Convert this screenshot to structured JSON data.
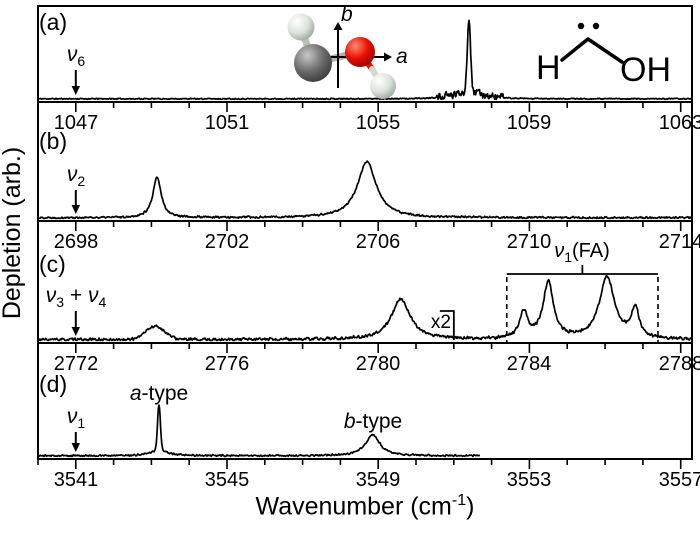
{
  "figure": {
    "ylabel": "Depletion (arb.)",
    "xlabel_pre": "Wavenumber (cm",
    "xlabel_sup": "-1",
    "xlabel_post": ")",
    "ink": "#000000",
    "background": "#ffffff"
  },
  "insets": {
    "molecule": {
      "axis_a_label": "a",
      "axis_b_label": "b",
      "atom_colors": {
        "carbon": "#555555",
        "oxygen": "#d81600",
        "hydrogen": "#dfe4df"
      }
    },
    "structure": {
      "left_label": "H",
      "right_label": "OH",
      "lone_pair_dots": 2
    }
  },
  "chart_data": [
    {
      "panel": "a",
      "panel_label": "(a)",
      "type": "line",
      "xlim": [
        1046.0,
        1063.3
      ],
      "x_major_ticks": [
        1047,
        1051,
        1055,
        1059,
        1063
      ],
      "x_minor_step": 1,
      "band": {
        "segments": [
          {
            "t": "ν",
            "sub": "6"
          }
        ],
        "arrow_x": 1047
      },
      "peaks": [
        {
          "center": 1057.4,
          "height": 0.76,
          "hwhm": 0.05,
          "shape": "gauss"
        },
        {
          "center": 1057.4,
          "height": 0.05,
          "hwhm": 0.3,
          "shape": "lorentz"
        },
        {
          "center": 1057.4,
          "height": 0.035,
          "hwhm": 0.6,
          "shape": "gauss"
        }
      ],
      "noise_amp": 0.007,
      "noise_zones": [
        {
          "from": 1056.55,
          "to": 1058.3,
          "amp": 0.05
        }
      ],
      "seed": 11
    },
    {
      "panel": "b",
      "panel_label": "(b)",
      "type": "line",
      "xlim": [
        2697.0,
        2714.3
      ],
      "x_major_ticks": [
        2698,
        2702,
        2706,
        2710,
        2714
      ],
      "x_minor_step": 1,
      "band": {
        "segments": [
          {
            "t": "ν",
            "sub": "2"
          }
        ],
        "arrow_x": 2698
      },
      "peaks": [
        {
          "center": 2700.15,
          "height": 0.34,
          "hwhm": 0.13,
          "shape": "lorentz"
        },
        {
          "center": 2705.7,
          "height": 0.47,
          "hwhm": 0.3,
          "shape": "lorentz"
        }
      ],
      "noise_amp": 0.01,
      "seed": 22
    },
    {
      "panel": "c",
      "panel_label": "(c)",
      "type": "line",
      "xlim": [
        2771.0,
        2788.3
      ],
      "x_major_ticks": [
        2772,
        2776,
        2780,
        2784,
        2788
      ],
      "x_minor_step": 1,
      "band": {
        "segments": [
          {
            "t": "ν",
            "sub": "3"
          },
          {
            "t": " + "
          },
          {
            "t": "ν",
            "sub": "4"
          }
        ],
        "arrow_x": 2772
      },
      "peaks": [
        {
          "center": 2774.1,
          "height": 0.11,
          "hwhm": 0.3,
          "shape": "gauss"
        },
        {
          "center": 2780.6,
          "height": 0.33,
          "hwhm": 0.3,
          "shape": "lorentz"
        },
        {
          "center": 2783.85,
          "height": 0.22,
          "hwhm": 0.13,
          "shape": "lorentz"
        },
        {
          "center": 2784.5,
          "height": 0.47,
          "hwhm": 0.16,
          "shape": "lorentz"
        },
        {
          "center": 2786.05,
          "height": 0.51,
          "hwhm": 0.24,
          "shape": "lorentz"
        },
        {
          "center": 2786.8,
          "height": 0.24,
          "hwhm": 0.12,
          "shape": "lorentz"
        }
      ],
      "noise_amp": 0.015,
      "scale_marker": {
        "label": "x2",
        "corner_x": 2782.0
      },
      "fa_bracket": {
        "segments": [
          {
            "t": "ν",
            "sub": "1"
          },
          {
            "t": "(FA)"
          }
        ],
        "from": 2783.4,
        "to": 2787.4
      },
      "seed": 33
    },
    {
      "panel": "d",
      "panel_label": "(d)",
      "type": "line",
      "xlim": [
        3540.0,
        3557.3
      ],
      "x_major_ticks": [
        3541,
        3545,
        3549,
        3553,
        3557
      ],
      "x_minor_step": 1,
      "band": {
        "segments": [
          {
            "t": "ν",
            "sub": "1"
          }
        ],
        "arrow_x": 3541
      },
      "data_end": 3551.7,
      "peaks": [
        {
          "center": 3543.2,
          "height": 0.39,
          "hwhm": 0.045,
          "shape": "gauss"
        },
        {
          "center": 3543.2,
          "height": 0.05,
          "hwhm": 0.25,
          "shape": "lorentz"
        },
        {
          "center": 3548.85,
          "height": 0.185,
          "hwhm": 0.22,
          "shape": "lorentz"
        }
      ],
      "noise_amp": 0.009,
      "peak_type_labels": [
        {
          "italic": "a",
          "text": "-type",
          "x": 3543.2
        },
        {
          "italic": "b",
          "text": "-type",
          "x": 3548.85
        }
      ],
      "seed": 44
    }
  ]
}
